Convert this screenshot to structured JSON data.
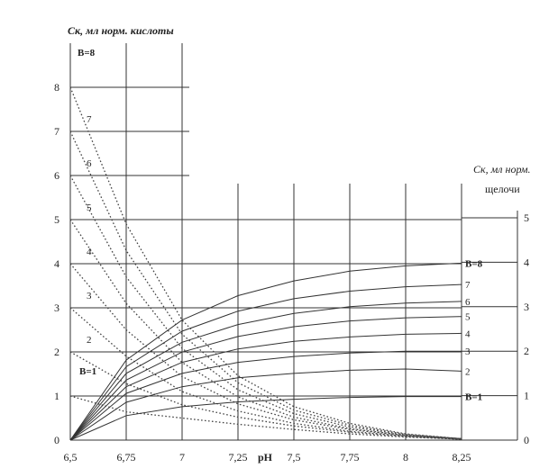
{
  "chart_data": {
    "type": "line",
    "x_label": "pH",
    "left_axis_title": "Ск, мл норм. кислоты",
    "right_axis_title_line1": "Ск, мл норм.",
    "right_axis_title_line2": "щелочи",
    "x_ticks": [
      6.5,
      6.75,
      7,
      7.25,
      7.5,
      7.75,
      8,
      8.25
    ],
    "x_tick_labels": [
      "6,5",
      "6,75",
      "7",
      "7,25",
      "7,5",
      "7,75",
      "8",
      "8,25"
    ],
    "x_range": [
      6.5,
      8.25
    ],
    "left_ticks": [
      "0",
      "1",
      "2",
      "3",
      "4",
      "5",
      "6",
      "7",
      "8"
    ],
    "left_range": [
      0,
      8.5
    ],
    "right_ticks": [
      "0",
      "1",
      "2",
      "3",
      "4",
      "5"
    ],
    "right_range": [
      0,
      5
    ],
    "grid": true,
    "acid_series": [
      {
        "label": "B=1",
        "x": [
          6.5,
          6.75,
          7,
          7.25,
          7.5,
          7.75,
          8,
          8.25
        ],
        "y": [
          1.0,
          0.64,
          0.5,
          0.36,
          0.24,
          0.14,
          0.07,
          0.02
        ]
      },
      {
        "label": "2",
        "x": [
          6.5,
          6.75,
          7,
          7.25,
          7.5,
          7.75,
          8,
          8.25
        ],
        "y": [
          2.0,
          1.28,
          0.8,
          0.52,
          0.32,
          0.18,
          0.08,
          0.02
        ]
      },
      {
        "label": "3",
        "x": [
          6.5,
          6.75,
          7,
          7.25,
          7.5,
          7.75,
          8,
          8.25
        ],
        "y": [
          3.0,
          1.9,
          1.1,
          0.66,
          0.38,
          0.2,
          0.09,
          0.02
        ]
      },
      {
        "label": "4",
        "x": [
          6.5,
          6.75,
          7,
          7.25,
          7.5,
          7.75,
          8,
          8.25
        ],
        "y": [
          4.0,
          2.5,
          1.44,
          0.82,
          0.46,
          0.24,
          0.1,
          0.03
        ]
      },
      {
        "label": "5",
        "x": [
          6.5,
          6.75,
          7,
          7.25,
          7.5,
          7.75,
          8,
          8.25
        ],
        "y": [
          5.0,
          3.1,
          1.76,
          0.98,
          0.52,
          0.26,
          0.11,
          0.03
        ]
      },
      {
        "label": "6",
        "x": [
          6.5,
          6.75,
          7,
          7.25,
          7.5,
          7.75,
          8,
          8.25
        ],
        "y": [
          6.0,
          3.7,
          2.08,
          1.14,
          0.6,
          0.3,
          0.12,
          0.03
        ]
      },
      {
        "label": "7",
        "x": [
          6.5,
          6.75,
          7,
          7.25,
          7.5,
          7.75,
          8,
          8.25
        ],
        "y": [
          7.0,
          4.3,
          2.4,
          1.3,
          0.68,
          0.34,
          0.13,
          0.03
        ]
      },
      {
        "label": "B=8",
        "x": [
          6.5,
          6.75,
          7,
          7.25,
          7.5,
          7.75,
          8,
          8.25
        ],
        "y": [
          8.0,
          4.9,
          2.72,
          1.46,
          0.76,
          0.38,
          0.14,
          0.03
        ]
      }
    ],
    "base_series": [
      {
        "label": "B=1",
        "x": [
          6.5,
          6.75,
          7,
          7.25,
          7.5,
          7.75,
          8,
          8.25
        ],
        "y": [
          0,
          0.55,
          0.75,
          0.86,
          0.92,
          0.96,
          0.98,
          0.98
        ]
      },
      {
        "label": "2",
        "x": [
          6.5,
          6.75,
          7,
          7.25,
          7.5,
          7.75,
          8,
          8.25
        ],
        "y": [
          0,
          0.85,
          1.2,
          1.4,
          1.5,
          1.57,
          1.6,
          1.55
        ]
      },
      {
        "label": "3",
        "x": [
          6.5,
          6.75,
          7,
          7.25,
          7.5,
          7.75,
          8,
          8.25
        ],
        "y": [
          0,
          1.05,
          1.5,
          1.75,
          1.88,
          1.96,
          2.0,
          2.0
        ]
      },
      {
        "label": "4",
        "x": [
          6.5,
          6.75,
          7,
          7.25,
          7.5,
          7.75,
          8,
          8.25
        ],
        "y": [
          0,
          1.2,
          1.75,
          2.05,
          2.22,
          2.32,
          2.38,
          2.4
        ]
      },
      {
        "label": "5",
        "x": [
          6.5,
          6.75,
          7,
          7.25,
          7.5,
          7.75,
          8,
          8.25
        ],
        "y": [
          0,
          1.35,
          1.98,
          2.33,
          2.55,
          2.68,
          2.75,
          2.78
        ]
      },
      {
        "label": "6",
        "x": [
          6.5,
          6.75,
          7,
          7.25,
          7.5,
          7.75,
          8,
          8.25
        ],
        "y": [
          0,
          1.5,
          2.2,
          2.6,
          2.85,
          3.0,
          3.08,
          3.12
        ]
      },
      {
        "label": "7",
        "x": [
          6.5,
          6.75,
          7,
          7.25,
          7.5,
          7.75,
          8,
          8.25
        ],
        "y": [
          0,
          1.65,
          2.45,
          2.9,
          3.18,
          3.35,
          3.45,
          3.5
        ]
      },
      {
        "label": "B=8",
        "x": [
          6.5,
          6.75,
          7,
          7.25,
          7.5,
          7.75,
          8,
          8.25
        ],
        "y": [
          0,
          1.8,
          2.7,
          3.25,
          3.58,
          3.8,
          3.92,
          3.98
        ]
      }
    ]
  }
}
